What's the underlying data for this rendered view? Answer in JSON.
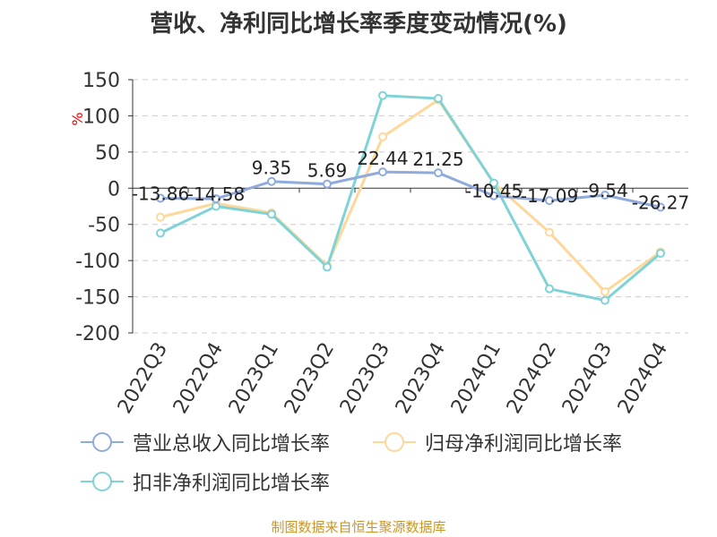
{
  "title": "营收、净利同比增长率季度变动情况(%)",
  "source": "制图数据来自恒生聚源数据库",
  "chart_data": {
    "type": "line",
    "title": "营收、净利同比增长率季度变动情况(%)",
    "ylabel": "%",
    "ylim": [
      -200,
      150
    ],
    "yticks": [
      150,
      100,
      50,
      0,
      -50,
      -100,
      -150,
      -200
    ],
    "grid": true,
    "legend_position": "bottom",
    "categories": [
      "2022Q3",
      "2022Q4",
      "2023Q1",
      "2023Q2",
      "2023Q3",
      "2023Q4",
      "2024Q1",
      "2024Q2",
      "2024Q3",
      "2024Q4"
    ],
    "series": [
      {
        "name": "营业总收入同比增长率",
        "color": "#8faadc",
        "values": [
          -13.86,
          -14.58,
          9.35,
          5.69,
          22.44,
          21.25,
          -10.45,
          -17.09,
          -9.54,
          -26.27
        ],
        "labels": [
          "-13.86",
          "-14.58",
          "9.35",
          "5.69",
          "22.44",
          "21.25",
          "-10.45",
          "-17.09",
          "-9.54",
          "-26.27"
        ]
      },
      {
        "name": "归母净利润同比增长率",
        "color": "#fdd89a",
        "values": [
          -40,
          -21,
          -34,
          -107,
          71,
          122,
          7,
          -61,
          -143,
          -88
        ]
      },
      {
        "name": "扣非净利润同比增长率",
        "color": "#7fd3d6",
        "values": [
          -62,
          -25,
          -36,
          -109,
          128,
          124,
          7,
          -139,
          -155,
          -90
        ]
      }
    ]
  }
}
